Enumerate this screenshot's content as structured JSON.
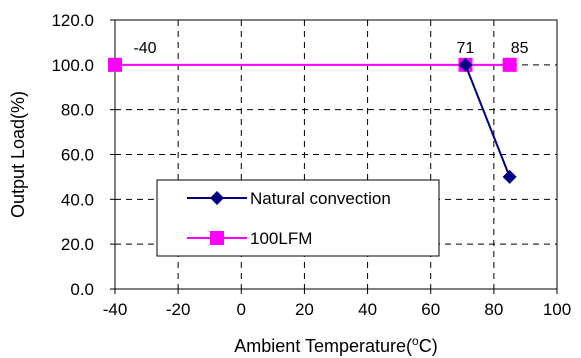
{
  "chart_data": {
    "type": "line",
    "title": "",
    "xlabel": "Ambient Temperature(",
    "xlabel_sup": "o",
    "xlabel_unit": "C)",
    "ylabel": "Output Load(%)",
    "xlim": [
      -40,
      100
    ],
    "ylim": [
      0,
      120
    ],
    "x_ticks": [
      -40,
      -20,
      0,
      20,
      40,
      60,
      80,
      100
    ],
    "y_ticks": [
      0,
      20,
      40,
      60,
      80,
      100,
      120
    ],
    "x_tick_labels": [
      "-40",
      "-20",
      "0",
      "20",
      "40",
      "60",
      "80",
      "100"
    ],
    "y_tick_labels": [
      "0.0",
      "20.0",
      "40.0",
      "60.0",
      "80.0",
      "100.0",
      "120.0"
    ],
    "grid": true,
    "legend_position": "bottom-left",
    "series": [
      {
        "name": "Natural convection",
        "marker": "diamond",
        "color": "#000080",
        "x": [
          71,
          85
        ],
        "y": [
          100,
          50
        ]
      },
      {
        "name": "100LFM",
        "marker": "square",
        "color": "#ff00ff",
        "x": [
          -40,
          71,
          85
        ],
        "y": [
          100,
          100,
          100
        ]
      }
    ],
    "annotations": [
      {
        "text": "-40",
        "x": -40,
        "y": 100
      },
      {
        "text": "71",
        "x": 71,
        "y": 100
      },
      {
        "text": "85",
        "x": 85,
        "y": 100
      }
    ]
  }
}
